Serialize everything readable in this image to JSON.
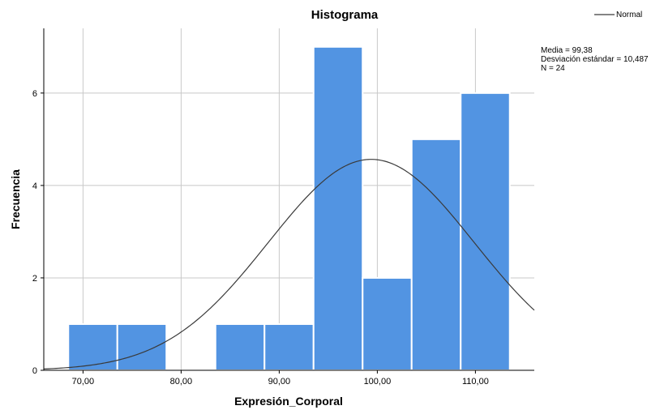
{
  "chart_data": {
    "type": "bar",
    "title": "Histograma",
    "xlabel": "Expresión_Corporal",
    "ylabel": "Frecuencia",
    "xlim": [
      66.0,
      116.0
    ],
    "ylim": [
      0,
      7.4
    ],
    "x_ticks": [
      70,
      80,
      90,
      100,
      110
    ],
    "x_tick_labels": [
      "70,00",
      "80,00",
      "90,00",
      "100,00",
      "110,00"
    ],
    "y_ticks": [
      0,
      2,
      4,
      6
    ],
    "y_tick_labels": [
      "0",
      "2",
      "4",
      "6"
    ],
    "grid": true,
    "bin_width": 5,
    "bins": [
      {
        "start": 68.5,
        "end": 73.5,
        "value": 1
      },
      {
        "start": 73.5,
        "end": 78.5,
        "value": 1
      },
      {
        "start": 78.5,
        "end": 83.5,
        "value": 0
      },
      {
        "start": 83.5,
        "end": 88.5,
        "value": 1
      },
      {
        "start": 88.5,
        "end": 93.5,
        "value": 1
      },
      {
        "start": 93.5,
        "end": 98.5,
        "value": 7
      },
      {
        "start": 98.5,
        "end": 103.5,
        "value": 2
      },
      {
        "start": 103.5,
        "end": 108.5,
        "value": 5
      },
      {
        "start": 108.5,
        "end": 113.5,
        "value": 6
      }
    ],
    "normal_curve": {
      "mean": 99.38,
      "sd": 10.487,
      "n": 24,
      "label": "Normal"
    },
    "legend_position": "top-right",
    "stats_lines": [
      "Media = 99,38",
      "Desviación estándar = 10,487",
      "N = 24"
    ],
    "colors": {
      "bar": "#5294e2",
      "bar_edge": "#ffffff",
      "grid": "#c8c8c8",
      "curve": "#3a3a3a",
      "axis": "#000000"
    }
  }
}
